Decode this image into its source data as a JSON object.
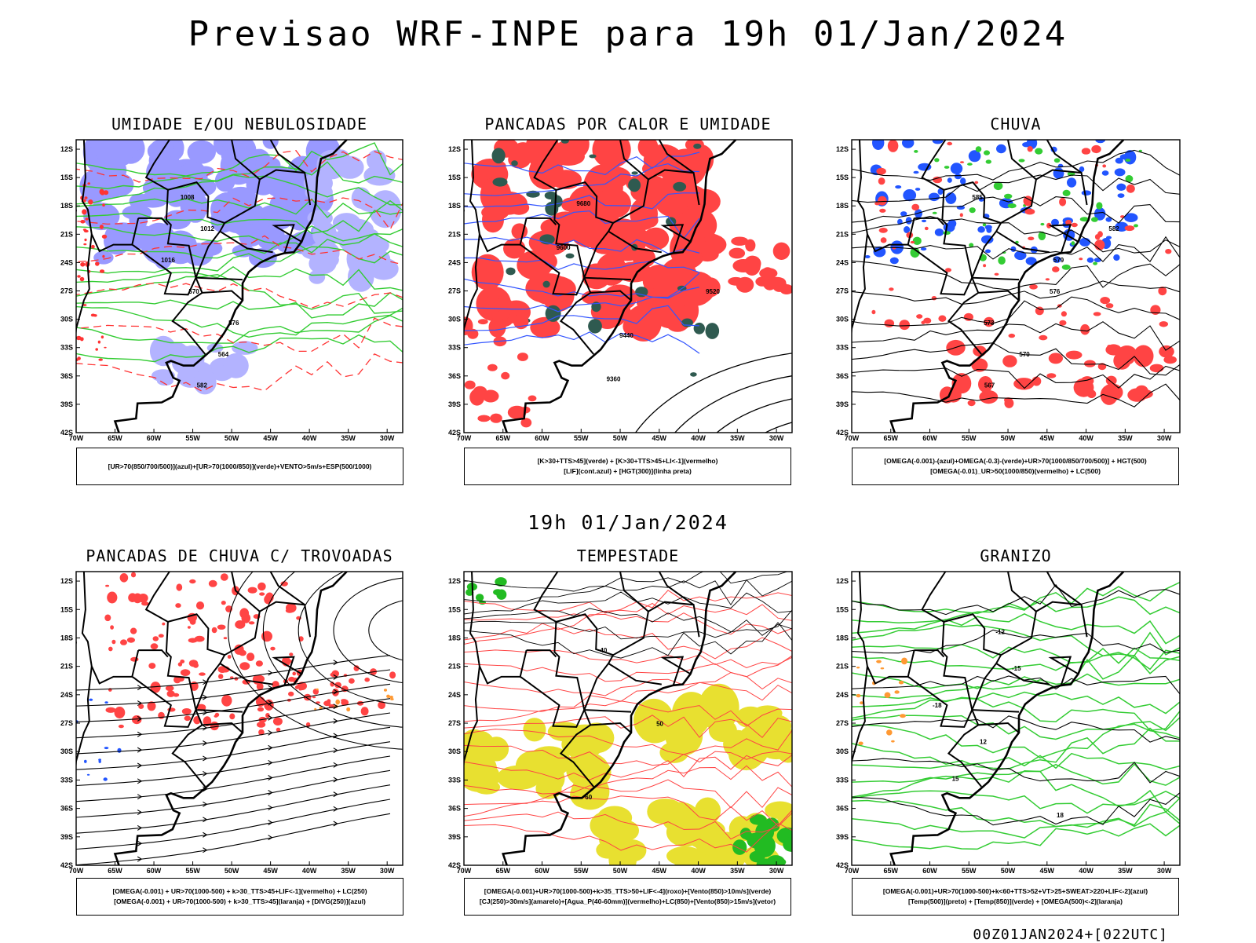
{
  "title": "Previsao WRF-INPE  para 19h 01/Jan/2024",
  "mid_title": "19h 01/Jan/2024",
  "footer": "00Z01JAN2024+[022UTC]",
  "axes": {
    "lat_ticks": [
      "12S",
      "15S",
      "18S",
      "21S",
      "24S",
      "27S",
      "30S",
      "33S",
      "36S",
      "39S",
      "42S"
    ],
    "lon_ticks": [
      "70W",
      "65W",
      "60W",
      "55W",
      "50W",
      "45W",
      "40W",
      "35W",
      "30W"
    ]
  },
  "panels": [
    {
      "id": "umidade",
      "title": "UMIDADE E/OU NEBULOSIDADE",
      "legend": [
        "[UR>70(850/700/500)](azul)+[UR>70(1000/850)](verde)+VENTO>5m/s+ESP(500/1000)"
      ],
      "contour_labels": [
        "1008",
        "1012",
        "1016",
        "570",
        "576",
        "564",
        "582"
      ],
      "colors": {
        "primary": "#9999ff",
        "secondary": "#33cc33",
        "lines": "#ff3333"
      }
    },
    {
      "id": "pancadas-calor",
      "title": "PANCADAS POR CALOR E UMIDADE",
      "legend": [
        "[K>30+TTS>45](verde) + [K>30+TTS>45+LI<-1](vermelho)",
        "[LIF](cont.azul) + [HGT(300)](linha preta)"
      ],
      "contour_labels": [
        "9680",
        "9600",
        "9520",
        "9440",
        "9360"
      ],
      "colors": {
        "primary": "#ff4444",
        "secondary": "#2f5a50",
        "lines": "#3355ff"
      }
    },
    {
      "id": "chuva",
      "title": "CHUVA",
      "legend": [
        "[OMEGA(-0.001)-(azul)+OMEGA(-0.3)-(verde)+UR>70(1000/850/700/500)] + HGT(500)",
        "[OMEGA(-0.01)_UR>50(1000/850)(vermelho) + LC(500)"
      ],
      "contour_labels": [
        "585",
        "582",
        "579",
        "576",
        "573",
        "570",
        "567"
      ],
      "colors": {
        "primary": "#ff4444",
        "secondary": "#2255ff",
        "lines": "#33cc33"
      }
    },
    {
      "id": "pancadas-trovoadas",
      "title": "PANCADAS DE CHUVA C/ TROVOADAS",
      "legend": [
        "[OMEGA(-0.001) + UR>70(1000-500) + k>30_TTS>45+LIF<-1](vermelho) + LC(250)",
        "[OMEGA(-0.001) + UR>70(1000-500) + k>30_TTS>45](laranja) + [DIVG(250)](azul)"
      ],
      "contour_labels": [],
      "colors": {
        "primary": "#ff4444",
        "secondary": "#2255ff",
        "lines": "#ff9933"
      }
    },
    {
      "id": "tempestade",
      "title": "TEMPESTADE",
      "legend": [
        "[OMEGA(-0.001)+UR>70(1000-500)+k>35_TTS>50+LIF<-4](roxo)+[Vento(850)>10m/s](verde)",
        "[CJ(250)>30m/s](amarelo)+[Agua_P(40-60mm)](vermelho)+LC(850)+[Vento(850)>15m/s](vetor)"
      ],
      "contour_labels": [
        "40",
        "50",
        "60"
      ],
      "colors": {
        "primary": "#e8e030",
        "secondary": "#22bb22",
        "lines": "#ff4444"
      }
    },
    {
      "id": "granizo",
      "title": "GRANIZO",
      "legend": [
        "[OMEGA(-0.001)+UR>70(1000-500)+k<60+TTS>52+VT>25+SWEAT>220+LIF<-2](azul)",
        "[Temp(500)](preto) + [Temp(850)](verde) + [OMEGA(500)<-2](laranja)"
      ],
      "contour_labels": [
        "-12",
        "-15",
        "-18",
        "12",
        "15",
        "18"
      ],
      "colors": {
        "primary": "#33cc33",
        "secondary": "#ff9933",
        "lines": "#000000"
      }
    }
  ]
}
